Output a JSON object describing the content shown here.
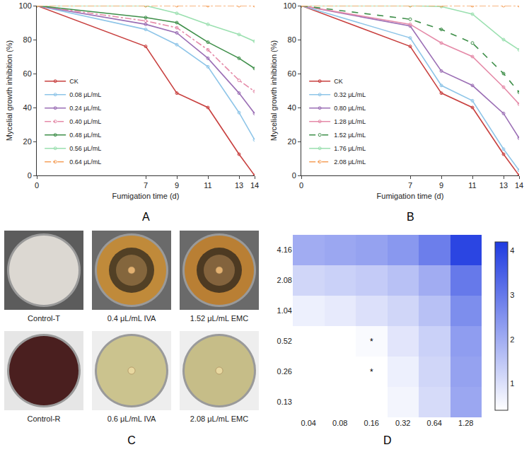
{
  "chart_data": [
    {
      "type": "line",
      "label": "A",
      "x_label": "Fumigation time (d)",
      "y_label": "Mycelial growth inhibition (%)",
      "x": [
        0,
        7,
        9,
        11,
        13,
        14
      ],
      "xlim": [
        0,
        14
      ],
      "xticks": [
        0,
        7,
        9,
        11,
        13,
        14
      ],
      "ylim": [
        0,
        100
      ],
      "yticks": [
        0,
        20,
        40,
        60,
        80,
        100
      ],
      "grid": false,
      "legend": "lower left",
      "marker": "circle-open",
      "series": [
        {
          "name": "CK",
          "color": "#c8403f",
          "line_style": "solid",
          "values": [
            100,
            76,
            48.5,
            40,
            12.5,
            0
          ]
        },
        {
          "name": "0.08 μL/mL",
          "color": "#8ec5e8",
          "line_style": "solid",
          "values": [
            100,
            86,
            77,
            64,
            37,
            21
          ]
        },
        {
          "name": "0.24 μL/mL",
          "color": "#9b6fb5",
          "line_style": "solid",
          "values": [
            100,
            89,
            84,
            69,
            48.5,
            36.5
          ]
        },
        {
          "name": "0.40 μL/mL",
          "color": "#e58aa8",
          "line_style": "dashdot",
          "values": [
            100,
            91,
            87,
            74,
            56,
            49.5
          ]
        },
        {
          "name": "0.48 μL/mL",
          "color": "#3f8f4a",
          "line_style": "solid",
          "values": [
            100,
            93,
            90,
            78.5,
            69,
            63
          ]
        },
        {
          "name": "0.56 μL/mL",
          "color": "#9be0b0",
          "line_style": "solid",
          "values": [
            100,
            100,
            95.5,
            89,
            83,
            79
          ]
        },
        {
          "name": "0.64 μL/mL",
          "color": "#f5a05a",
          "line_style": "dashdot",
          "values": [
            100,
            100,
            100,
            100,
            100,
            100
          ]
        }
      ]
    },
    {
      "type": "line",
      "label": "B",
      "x_label": "Fumigation time (d)",
      "y_label": "Mycelial growth inhibition (%)",
      "x": [
        0,
        7,
        9,
        11,
        13,
        14
      ],
      "xlim": [
        0,
        14
      ],
      "xticks": [
        0,
        7,
        9,
        11,
        13,
        14
      ],
      "ylim": [
        0,
        100
      ],
      "yticks": [
        0,
        20,
        40,
        60,
        80,
        100
      ],
      "grid": false,
      "legend": "lower left",
      "marker": "circle-open",
      "series": [
        {
          "name": "CK",
          "color": "#c8403f",
          "line_style": "solid",
          "values": [
            100,
            76,
            48.5,
            40,
            12.5,
            0
          ]
        },
        {
          "name": "0.32 μL/mL",
          "color": "#8ec5e8",
          "line_style": "solid",
          "values": [
            100,
            81,
            53,
            44,
            15.5,
            3
          ]
        },
        {
          "name": "0.80 μL/mL",
          "color": "#9b6fb5",
          "line_style": "solid",
          "values": [
            100,
            88,
            61.5,
            53,
            36.5,
            22
          ]
        },
        {
          "name": "1.28 μL/mL",
          "color": "#e58aa8",
          "line_style": "solid",
          "values": [
            100,
            89,
            78,
            70,
            52,
            42
          ]
        },
        {
          "name": "1.52 μL/mL",
          "color": "#3f8f4a",
          "line_style": "dash",
          "values": [
            100,
            92,
            86,
            78,
            60,
            49
          ]
        },
        {
          "name": "1.76 μL/mL",
          "color": "#9be0b0",
          "line_style": "solid",
          "values": [
            100,
            100,
            99.5,
            95,
            80,
            74
          ]
        },
        {
          "name": "2.08 μL/mL",
          "color": "#f5a05a",
          "line_style": "dashdot",
          "values": [
            100,
            100,
            100,
            100,
            100,
            100
          ]
        }
      ]
    },
    {
      "type": "heatmap",
      "label": "D",
      "color": "#1f3be0",
      "x_categories": [
        "0.04",
        "0.08",
        "0.16",
        "0.32",
        "0.64",
        "1.28"
      ],
      "y_categories": [
        "0.13",
        "0.26",
        "0.52",
        "1.04",
        "2.08",
        "4.16"
      ],
      "cells": [
        [
          0.1,
          0.2,
          0.3,
          0.6,
          1.1,
          2.1
        ],
        [
          0.2,
          0.3,
          0.4,
          0.7,
          1.2,
          2.2
        ],
        [
          0.3,
          0.4,
          0.5,
          0.9,
          1.3,
          2.3
        ],
        [
          0.7,
          0.8,
          1.0,
          1.2,
          1.6,
          2.6
        ],
        [
          1.2,
          1.3,
          1.4,
          1.6,
          2.0,
          3.0
        ],
        [
          2.0,
          2.1,
          2.2,
          2.4,
          2.9,
          4.0
        ]
      ],
      "zlim": [
        0.4,
        4.2
      ],
      "zticks": [
        1,
        2,
        3,
        4
      ],
      "annotations": [
        {
          "x": "0.16",
          "y": "0.52",
          "text": "*"
        },
        {
          "x": "0.16",
          "y": "0.26",
          "text": "*"
        }
      ]
    }
  ],
  "photos": {
    "label": "C",
    "captions": [
      "Control-T",
      "0.4 μL/mL IVA",
      "1.52 μL/mL EMC",
      "Control-R",
      "0.6 μL/mL IVA",
      "2.08 μL/mL EMC"
    ]
  }
}
